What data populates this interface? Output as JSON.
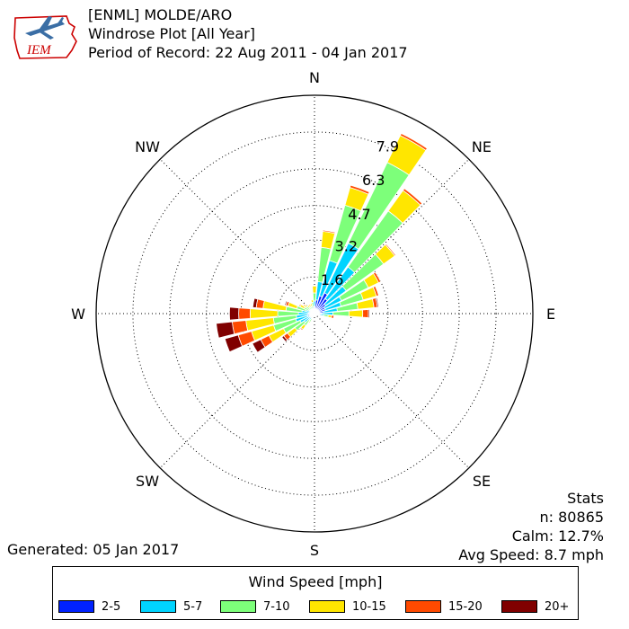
{
  "logo": {
    "text": "IEM"
  },
  "header": {
    "station": "[ENML] MOLDE/ARO",
    "plot_title": "Windrose Plot [All Year]",
    "period": "Period of Record: 22 Aug 2011 - 04 Jan 2017"
  },
  "stats": {
    "heading": "Stats",
    "n": "n: 80865",
    "calm": "Calm: 12.7%",
    "avg_speed": "Avg Speed: 8.7 mph"
  },
  "generated": "Generated: 05 Jan 2017",
  "legend": {
    "title": "Wind Speed [mph]",
    "items": [
      {
        "label": "2-5",
        "color": "#0022ff"
      },
      {
        "label": "5-7",
        "color": "#00d4ff"
      },
      {
        "label": "7-10",
        "color": "#7dff7a"
      },
      {
        "label": "10-15",
        "color": "#ffe600"
      },
      {
        "label": "15-20",
        "color": "#ff4a00"
      },
      {
        "label": "20+",
        "color": "#800000"
      }
    ]
  },
  "chart_data": {
    "type": "windrose",
    "units": "percent",
    "radial_ticks": [
      1.6,
      3.2,
      4.7,
      6.3,
      7.9
    ],
    "rmax": 9.5,
    "compass_labels": [
      "N",
      "NE",
      "E",
      "SE",
      "S",
      "SW",
      "W",
      "NW"
    ],
    "speed_bins": [
      "2-5",
      "5-7",
      "7-10",
      "10-15",
      "15-20",
      "20+"
    ],
    "directions": [
      {
        "deg": 0,
        "values": [
          0.3,
          0.25,
          0.35,
          0.3,
          0.0,
          0.0
        ]
      },
      {
        "deg": 10,
        "values": [
          0.6,
          0.8,
          1.5,
          0.7,
          0.05,
          0.0
        ]
      },
      {
        "deg": 20,
        "values": [
          0.8,
          1.6,
          2.5,
          0.8,
          0.1,
          0.0
        ]
      },
      {
        "deg": 30,
        "values": [
          1.0,
          2.4,
          3.9,
          1.3,
          0.1,
          0.0
        ]
      },
      {
        "deg": 40,
        "values": [
          0.8,
          1.7,
          3.0,
          1.1,
          0.1,
          0.0
        ]
      },
      {
        "deg": 50,
        "values": [
          0.6,
          1.1,
          2.0,
          0.6,
          0.05,
          0.0
        ]
      },
      {
        "deg": 60,
        "values": [
          0.5,
          0.8,
          1.3,
          0.5,
          0.1,
          0.0
        ]
      },
      {
        "deg": 70,
        "values": [
          0.5,
          0.7,
          1.0,
          0.6,
          0.1,
          0.0
        ]
      },
      {
        "deg": 80,
        "values": [
          0.4,
          0.6,
          0.9,
          0.7,
          0.15,
          0.05
        ]
      },
      {
        "deg": 90,
        "values": [
          0.3,
          0.5,
          0.7,
          0.6,
          0.25,
          0.05
        ]
      },
      {
        "deg": 100,
        "values": [
          0.2,
          0.2,
          0.2,
          0.15,
          0.1,
          0.0
        ]
      },
      {
        "deg": 110,
        "values": [
          0.1,
          0.05,
          0.0,
          0.0,
          0.0,
          0.0
        ]
      },
      {
        "deg": 120,
        "values": [
          0.05,
          0.0,
          0.0,
          0.0,
          0.0,
          0.0
        ]
      },
      {
        "deg": 130,
        "values": [
          0.03,
          0.0,
          0.0,
          0.0,
          0.0,
          0.0
        ]
      },
      {
        "deg": 140,
        "values": [
          0.03,
          0.0,
          0.0,
          0.0,
          0.0,
          0.0
        ]
      },
      {
        "deg": 150,
        "values": [
          0.03,
          0.0,
          0.0,
          0.0,
          0.0,
          0.0
        ]
      },
      {
        "deg": 160,
        "values": [
          0.03,
          0.0,
          0.0,
          0.0,
          0.0,
          0.0
        ]
      },
      {
        "deg": 170,
        "values": [
          0.03,
          0.0,
          0.0,
          0.0,
          0.0,
          0.0
        ]
      },
      {
        "deg": 180,
        "values": [
          0.05,
          0.0,
          0.0,
          0.0,
          0.0,
          0.0
        ]
      },
      {
        "deg": 190,
        "values": [
          0.05,
          0.05,
          0.0,
          0.0,
          0.0,
          0.0
        ]
      },
      {
        "deg": 200,
        "values": [
          0.08,
          0.1,
          0.05,
          0.0,
          0.0,
          0.0
        ]
      },
      {
        "deg": 210,
        "values": [
          0.1,
          0.15,
          0.15,
          0.05,
          0.0,
          0.0
        ]
      },
      {
        "deg": 220,
        "values": [
          0.15,
          0.2,
          0.3,
          0.2,
          0.05,
          0.0
        ]
      },
      {
        "deg": 230,
        "values": [
          0.2,
          0.35,
          0.5,
          0.4,
          0.2,
          0.1
        ]
      },
      {
        "deg": 240,
        "values": [
          0.25,
          0.45,
          0.8,
          0.7,
          0.4,
          0.4
        ]
      },
      {
        "deg": 250,
        "values": [
          0.3,
          0.55,
          1.0,
          1.0,
          0.6,
          0.6
        ]
      },
      {
        "deg": 260,
        "values": [
          0.3,
          0.5,
          1.0,
          1.2,
          0.6,
          0.7
        ]
      },
      {
        "deg": 270,
        "values": [
          0.25,
          0.45,
          0.9,
          1.2,
          0.5,
          0.4
        ]
      },
      {
        "deg": 280,
        "values": [
          0.2,
          0.35,
          0.7,
          1.0,
          0.3,
          0.15
        ]
      },
      {
        "deg": 290,
        "values": [
          0.15,
          0.25,
          0.4,
          0.4,
          0.1,
          0.05
        ]
      },
      {
        "deg": 300,
        "values": [
          0.1,
          0.15,
          0.25,
          0.2,
          0.05,
          0.0
        ]
      },
      {
        "deg": 310,
        "values": [
          0.1,
          0.15,
          0.2,
          0.1,
          0.05,
          0.0
        ]
      },
      {
        "deg": 320,
        "values": [
          0.1,
          0.1,
          0.15,
          0.1,
          0.0,
          0.0
        ]
      },
      {
        "deg": 330,
        "values": [
          0.1,
          0.1,
          0.15,
          0.1,
          0.0,
          0.0
        ]
      },
      {
        "deg": 340,
        "values": [
          0.1,
          0.1,
          0.15,
          0.1,
          0.0,
          0.0
        ]
      },
      {
        "deg": 350,
        "values": [
          0.15,
          0.15,
          0.2,
          0.1,
          0.0,
          0.0
        ]
      }
    ]
  }
}
